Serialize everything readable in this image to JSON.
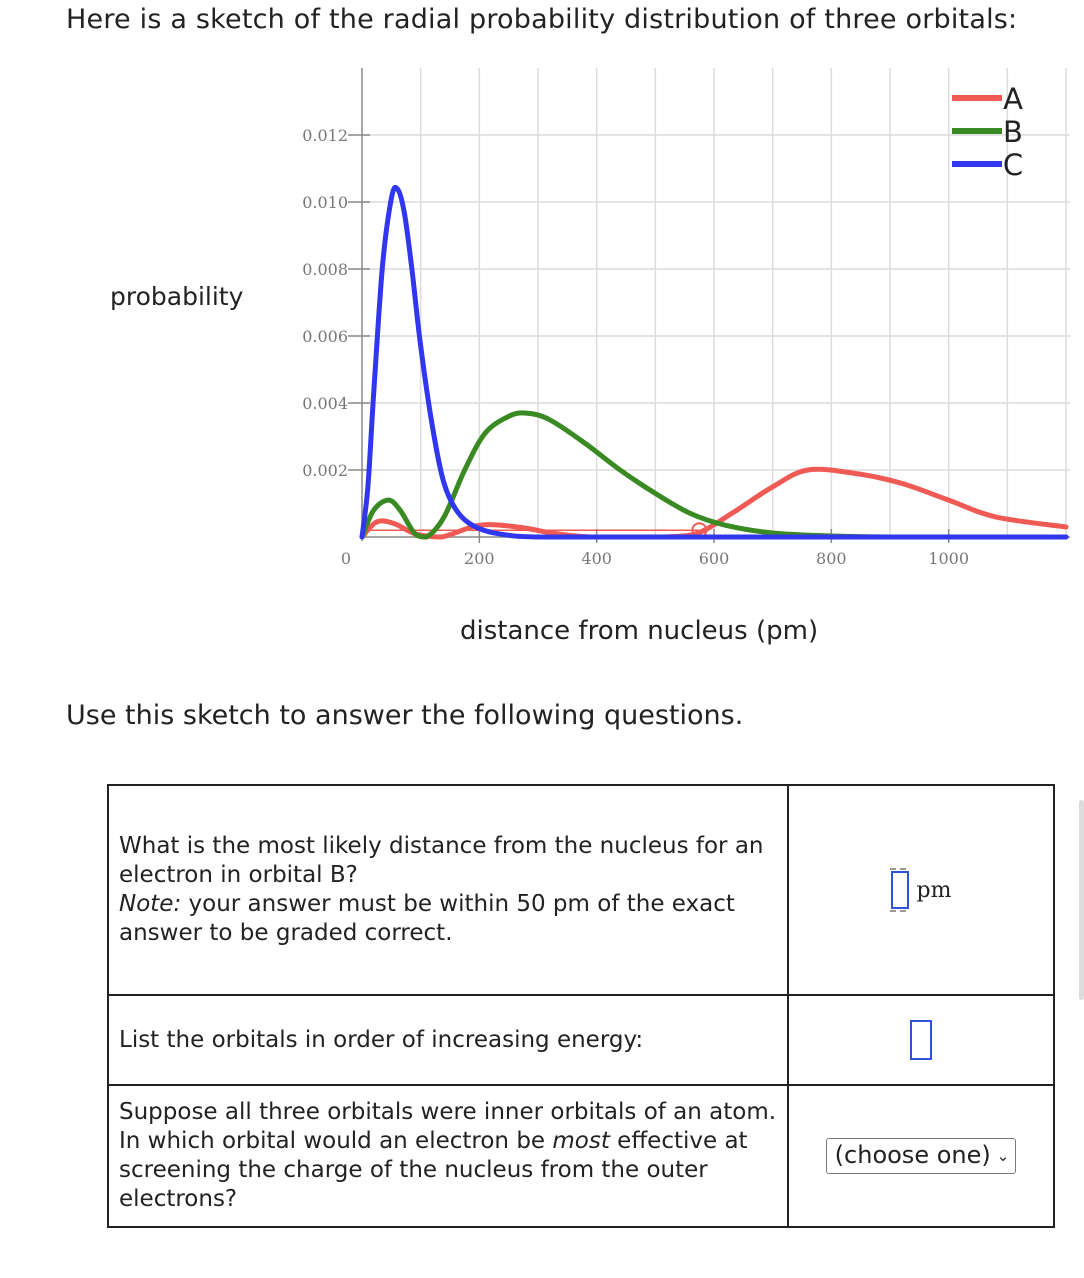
{
  "intro": "Here is a sketch of the radial probability distribution of three orbitals:",
  "use_text": "Use this sketch to answer the following questions.",
  "chart_data": {
    "type": "line",
    "xlabel": "distance from nucleus (pm)",
    "ylabel": "probability",
    "xlim": [
      0,
      1200
    ],
    "ylim": [
      0,
      0.012
    ],
    "x_ticks": [
      "0",
      "200",
      "400",
      "600",
      "800",
      "1000"
    ],
    "y_ticks": [
      "0.002",
      "0.004",
      "0.006",
      "0.008",
      "0.010",
      "0.012"
    ],
    "grid": true,
    "legend_position": "top-right",
    "series": [
      {
        "name": "A",
        "color": "#ef5a54",
        "x": [
          0,
          25,
          55,
          90,
          135,
          200,
          265,
          330,
          390,
          450,
          510,
          570,
          630,
          700,
          760,
          840,
          920,
          1000,
          1080,
          1200
        ],
        "y": [
          0,
          0.00045,
          0.0004,
          0.0001,
          0.0,
          0.00035,
          0.0003,
          0.0001,
          0.0,
          0.0,
          0.0,
          0.0001,
          0.0007,
          0.0015,
          0.002,
          0.0019,
          0.0016,
          0.0011,
          0.0006,
          0.0003
        ]
      },
      {
        "name": "B",
        "color": "#3a8a23",
        "x": [
          0,
          20,
          45,
          65,
          90,
          110,
          140,
          175,
          210,
          250,
          280,
          320,
          380,
          440,
          500,
          560,
          620,
          700,
          800,
          900,
          1200
        ],
        "y": [
          0,
          0.0008,
          0.0011,
          0.0008,
          0.0001,
          0.0,
          0.0006,
          0.002,
          0.0031,
          0.0036,
          0.0037,
          0.0035,
          0.0028,
          0.002,
          0.0013,
          0.0007,
          0.00035,
          0.00012,
          3e-05,
          0.0,
          0.0
        ]
      },
      {
        "name": "C",
        "color": "#3136ef",
        "x": [
          0,
          10,
          20,
          35,
          50,
          60,
          72,
          85,
          100,
          120,
          140,
          165,
          200,
          250,
          300,
          400,
          600,
          1200
        ],
        "y": [
          0,
          0.0015,
          0.0043,
          0.0081,
          0.0101,
          0.0104,
          0.0097,
          0.008,
          0.0057,
          0.0033,
          0.0016,
          0.0007,
          0.00025,
          5e-05,
          0.0,
          0.0,
          0.0,
          0.0
        ]
      }
    ],
    "annotation": {
      "type": "horizontal-line-with-marker",
      "color": "#ef5a54",
      "x": [
        0,
        575
      ],
      "y": 0.0002
    }
  },
  "questions": [
    {
      "text": "What is the most likely distance from the nucleus for an electron in orbital B?",
      "note_label": "Note:",
      "note_text": " your answer must be within 50 pm of the exact answer to be graded correct.",
      "unit": "pm"
    },
    {
      "text": "List the orbitals in order of increasing energy:"
    },
    {
      "text_before": "Suppose all three orbitals were inner orbitals of an atom. In which orbital would an electron be ",
      "emphasis": "most",
      "text_after": " effective at screening the charge of the nucleus from the outer electrons?",
      "select_value": "(choose one)"
    }
  ]
}
